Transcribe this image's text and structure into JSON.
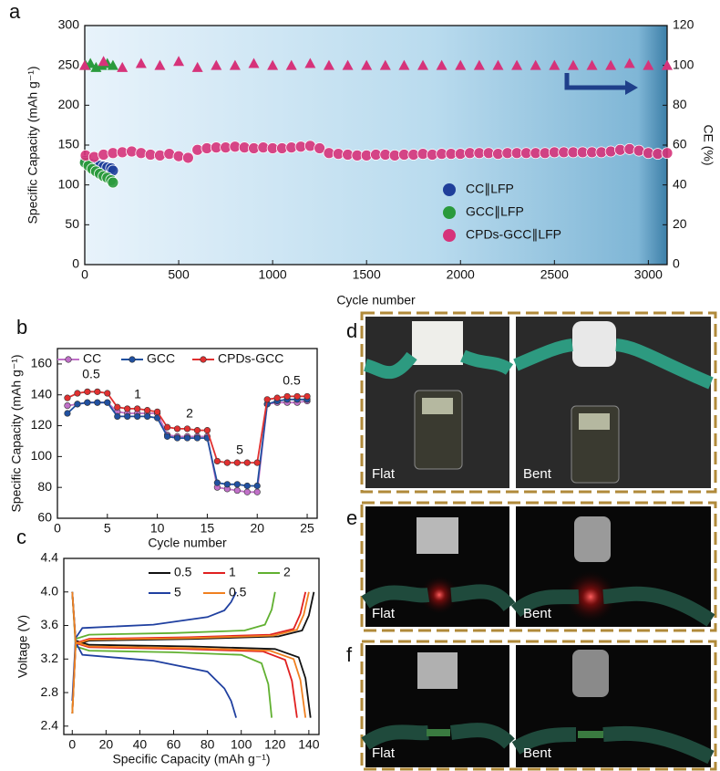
{
  "chart_data": [
    {
      "type": "scatter",
      "panel_label": "a",
      "x_label": "Cycle number",
      "y_label": "Specific Capacity (mAh g⁻¹)",
      "y2_label": "CE (%)",
      "xlim": [
        0,
        3100
      ],
      "xticks": [
        0,
        500,
        1000,
        1500,
        2000,
        2500,
        3000
      ],
      "ylim": [
        0,
        300
      ],
      "yticks": [
        0,
        50,
        100,
        150,
        200,
        250,
        300
      ],
      "y2lim": [
        0,
        120
      ],
      "y2ticks": [
        0,
        20,
        40,
        60,
        80,
        100,
        120
      ],
      "legend": "lower right",
      "series": [
        {
          "name": "CC∥LFP",
          "color": "#1f3f9a",
          "x": [
            1,
            20,
            40,
            60,
            80,
            100,
            120,
            140,
            150
          ],
          "values": [
            130,
            128,
            126,
            125,
            124,
            123,
            122,
            121,
            118
          ]
        },
        {
          "name": "GCC∥LFP",
          "color": "#2a9a3c",
          "x": [
            1,
            20,
            40,
            60,
            80,
            100,
            120,
            140,
            150
          ],
          "values": [
            128,
            124,
            120,
            117,
            114,
            111,
            109,
            106,
            103
          ]
        },
        {
          "name": "CPDs-GCC∥LFP",
          "color": "#d6337a",
          "x": [
            5,
            50,
            100,
            150,
            200,
            250,
            300,
            350,
            400,
            450,
            500,
            550,
            600,
            650,
            700,
            750,
            800,
            850,
            900,
            950,
            1000,
            1050,
            1100,
            1150,
            1200,
            1250,
            1300,
            1350,
            1400,
            1450,
            1500,
            1550,
            1600,
            1650,
            1700,
            1750,
            1800,
            1850,
            1900,
            1950,
            2000,
            2050,
            2100,
            2150,
            2200,
            2250,
            2300,
            2350,
            2400,
            2450,
            2500,
            2550,
            2600,
            2650,
            2700,
            2750,
            2800,
            2850,
            2900,
            2950,
            3000,
            3050,
            3100
          ],
          "values": [
            137,
            135,
            138,
            140,
            141,
            142,
            140,
            138,
            137,
            139,
            136,
            134,
            144,
            146,
            147,
            147,
            148,
            147,
            146,
            147,
            146,
            146,
            147,
            148,
            149,
            146,
            140,
            139,
            138,
            137,
            137,
            138,
            138,
            137,
            138,
            138,
            139,
            138,
            139,
            139,
            139,
            140,
            140,
            140,
            139,
            140,
            140,
            140,
            140,
            140,
            141,
            141,
            141,
            141,
            141,
            141,
            142,
            144,
            145,
            143,
            140,
            139,
            140
          ]
        },
        {
          "color": "#2a9a3c",
          "axis": "y2",
          "x": [
            5,
            30,
            60,
            90,
            120,
            150
          ],
          "values": [
            100,
            101,
            99,
            100,
            101,
            100
          ]
        },
        {
          "color": "#d6337a",
          "axis": "y2",
          "x": [
            0,
            100,
            200,
            300,
            400,
            500,
            600,
            700,
            800,
            900,
            1000,
            1100,
            1200,
            1300,
            1400,
            1500,
            1600,
            1700,
            1800,
            1900,
            2000,
            2100,
            2200,
            2300,
            2400,
            2500,
            2600,
            2700,
            2800,
            2900,
            3000,
            3100
          ],
          "values": [
            100,
            102,
            99,
            101,
            100,
            102,
            99,
            100,
            100,
            101,
            100,
            100,
            101,
            100,
            100,
            100,
            100,
            100,
            100,
            100,
            100,
            100,
            100,
            100,
            100,
            100,
            100,
            100,
            100,
            101,
            100,
            100
          ]
        }
      ]
    },
    {
      "type": "line",
      "panel_label": "b",
      "x_label": "Cycle number",
      "y_label": "Specific Capacity (mAh g⁻¹)",
      "xlim": [
        0,
        26
      ],
      "xticks": [
        0,
        5,
        10,
        15,
        20,
        25
      ],
      "ylim": [
        60,
        170
      ],
      "yticks": [
        60,
        80,
        100,
        120,
        140,
        160
      ],
      "legend": "upper",
      "markers": true,
      "annotations": [
        "0.5",
        "1",
        "2",
        "5",
        "0.5"
      ],
      "x": [
        1,
        2,
        3,
        4,
        5,
        6,
        7,
        8,
        9,
        10,
        11,
        12,
        13,
        14,
        15,
        16,
        17,
        18,
        19,
        20,
        21,
        22,
        23,
        24,
        25
      ],
      "series": [
        {
          "name": "CC",
          "color": "#c070c8",
          "values": [
            133,
            134,
            135,
            135,
            135,
            129,
            128,
            128,
            128,
            128,
            114,
            113,
            113,
            113,
            113,
            80,
            79,
            78,
            77,
            77,
            134,
            135,
            135,
            135,
            136
          ]
        },
        {
          "name": "GCC",
          "color": "#2050a0",
          "values": [
            128,
            134,
            135,
            135,
            135,
            126,
            126,
            126,
            126,
            125,
            113,
            112,
            112,
            112,
            112,
            83,
            82,
            82,
            81,
            81,
            134,
            136,
            137,
            137,
            137
          ]
        },
        {
          "name": "CPDs-GCC",
          "color": "#e03030",
          "values": [
            138,
            141,
            142,
            142,
            141,
            132,
            131,
            131,
            130,
            129,
            119,
            118,
            118,
            117,
            117,
            97,
            96,
            96,
            96,
            96,
            137,
            138,
            139,
            139,
            139
          ]
        }
      ]
    },
    {
      "type": "line",
      "panel_label": "c",
      "x_label": "Specific Capacity (mAh g⁻¹)",
      "y_label": "Voltage (V)",
      "xlim": [
        -5,
        146
      ],
      "xticks": [
        0,
        20,
        40,
        60,
        80,
        100,
        120,
        140
      ],
      "ylim": [
        2.3,
        4.4
      ],
      "yticks": [
        2.4,
        2.8,
        3.2,
        3.6,
        {
          "value": 4,
          "label": "4.0"
        },
        4.4
      ],
      "legend": "upper right",
      "series": [
        {
          "name": "0.5",
          "color": "#111111",
          "x": [
            0,
            2,
            10,
            72,
            122,
            136,
            140,
            143,
            null,
            0,
            2,
            10,
            71,
            120,
            134,
            138,
            141
          ],
          "values": [
            2.55,
            3.37,
            3.42,
            3.44,
            3.47,
            3.54,
            3.72,
            4.0,
            null,
            4.0,
            3.42,
            3.37,
            3.35,
            3.32,
            3.22,
            2.97,
            2.5
          ]
        },
        {
          "name": "1",
          "color": "#e02020",
          "x": [
            0,
            2,
            10,
            69,
            117,
            131,
            135,
            138,
            null,
            0,
            2,
            10,
            67,
            113,
            126,
            130,
            133
          ],
          "values": [
            2.55,
            3.39,
            3.44,
            3.46,
            3.49,
            3.56,
            3.74,
            4.0,
            null,
            4.0,
            3.39,
            3.34,
            3.32,
            3.29,
            3.19,
            2.94,
            2.5
          ]
        },
        {
          "name": "2",
          "color": "#60b030",
          "x": [
            0,
            2,
            10,
            60,
            102,
            114,
            118,
            120,
            null,
            0,
            2,
            10,
            59,
            100,
            112,
            116,
            118
          ],
          "values": [
            2.55,
            3.44,
            3.49,
            3.51,
            3.54,
            3.61,
            3.79,
            4.0,
            null,
            4.0,
            3.35,
            3.3,
            3.28,
            3.25,
            3.15,
            2.9,
            2.5
          ]
        },
        {
          "name": "5",
          "color": "#2040a0",
          "x": [
            0,
            2,
            6,
            48,
            80,
            90,
            94,
            97,
            null,
            0,
            2,
            6,
            48,
            80,
            90,
            94,
            97
          ],
          "values": [
            2.7,
            3.45,
            3.57,
            3.61,
            3.7,
            3.78,
            3.88,
            4.0,
            null,
            4.0,
            3.4,
            3.25,
            3.18,
            3.05,
            2.85,
            2.7,
            2.5
          ]
        },
        {
          "name": "0.5",
          "color": "#f08020",
          "x": [
            0,
            2,
            10,
            70,
            119,
            133,
            137,
            140,
            null,
            0,
            2,
            10,
            69,
            117,
            131,
            135,
            138
          ],
          "values": [
            2.55,
            3.38,
            3.43,
            3.45,
            3.48,
            3.55,
            3.73,
            4.0,
            null,
            4.0,
            3.4,
            3.35,
            3.33,
            3.3,
            3.2,
            2.95,
            2.5
          ]
        }
      ]
    }
  ],
  "photos": [
    {
      "panel_label": "d",
      "left": "Flat",
      "right": "Bent"
    },
    {
      "panel_label": "e",
      "left": "Flat",
      "right": "Bent"
    },
    {
      "panel_label": "f",
      "left": "Flat",
      "right": "Bent"
    }
  ]
}
